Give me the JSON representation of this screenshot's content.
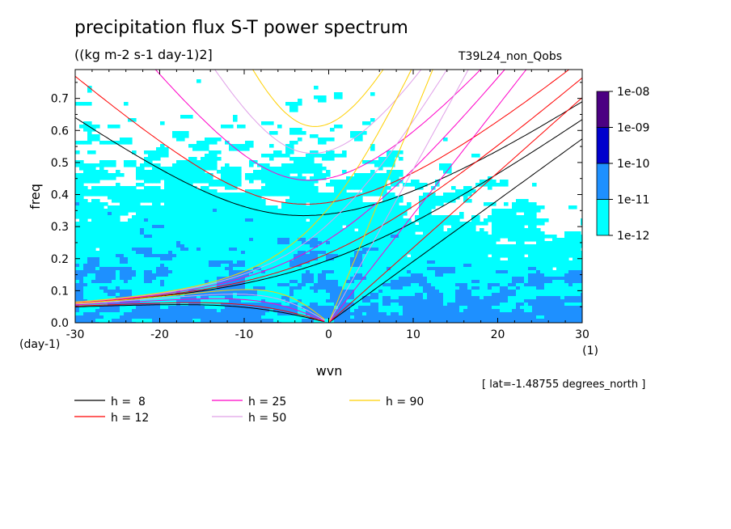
{
  "title": "precipitation flux S-T power spectrum",
  "units": "((kg m-2 s-1 day-1)2]",
  "run_name": "T39L24_non_Qobs",
  "lat_note": "[ lat=-1.48755 degrees_north ]",
  "colors": {
    "level_1e-12_to_1e-11": "#00ffff",
    "level_1e-11_to_1e-10": "#1e90ff",
    "level_1e-10_to_1e-09": "#0000cd",
    "level_1e-09_to_1e-08": "#4b0082",
    "plot_bg": "#ffffff"
  },
  "chart_data": {
    "type": "heatmap",
    "title": "precipitation flux S-T power spectrum",
    "subtitle": "((kg m-2 s-1 day-1)2]",
    "xlabel": "wvn",
    "x_unit_label": "(1)",
    "ylabel": "freq",
    "y_unit_label": "(day-1)",
    "xlim": [
      -30,
      30
    ],
    "ylim": [
      0.0,
      0.79
    ],
    "x_ticks": [
      -30,
      -20,
      -10,
      0,
      10,
      20,
      30
    ],
    "x_tick_labels": [
      "-30",
      "-20",
      "-10",
      "0",
      "10",
      "20",
      "30"
    ],
    "y_ticks": [
      0.0,
      0.1,
      0.2,
      0.3,
      0.4,
      0.5,
      0.6,
      0.7
    ],
    "y_tick_labels": [
      "0.0",
      "0.1",
      "0.2",
      "0.3",
      "0.4",
      "0.5",
      "0.6",
      "0.7"
    ],
    "colorbar": {
      "levels": [
        "1e-12",
        "1e-11",
        "1e-10",
        "1e-09",
        "1e-08"
      ],
      "colors": [
        "#00ffff",
        "#1e90ff",
        "#0000cd",
        "#4b0082"
      ]
    },
    "dispersion_curves": [
      {
        "label": "h =  8",
        "h": 8,
        "color": "#000000"
      },
      {
        "label": "h = 12",
        "h": 12,
        "color": "#ff0000"
      },
      {
        "label": "h = 25",
        "h": 25,
        "color": "#ff00c8"
      },
      {
        "label": "h = 50",
        "h": 50,
        "color": "#e0a0e8"
      },
      {
        "label": "h = 90",
        "h": 90,
        "color": "#ffd000"
      }
    ],
    "grid": false,
    "legend_position": "bottom-left"
  }
}
